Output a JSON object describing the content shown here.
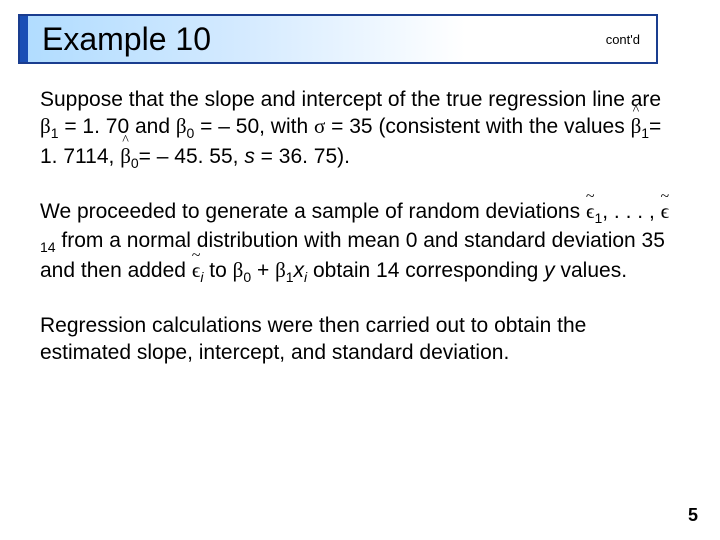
{
  "title": "Example 10",
  "contd": "cont'd",
  "para1": {
    "t1": "Suppose that the slope and intercept of the true regression line are ",
    "b1": "β",
    "s1": "1",
    "t2": " = 1. 70 and ",
    "b0": "β",
    "s0": "0",
    "t3": " = – 50, with ",
    "sigma": "σ",
    "t4": " = 35 (consistent with the values ",
    "bhat1": "β",
    "bhat1s": "1",
    "t5": "= 1. 7114, ",
    "bhat0": "β",
    "bhat0s": "0",
    "t6": "= – 45. 55, ",
    "s": "s",
    "t7": " = 36. 75)."
  },
  "para2": {
    "t1": "We proceeded to generate a sample of random deviations ",
    "e1": "ϵ",
    "e1s": "1",
    "dots": ", . . . , ",
    "e14": "ϵ",
    "e14s": "14",
    "t2": " from a normal distribution with mean 0 and standard deviation 35 and then added ",
    "ei": "ϵ",
    "eis": "i",
    "t3": " to ",
    "b0": "β",
    "s0": "0",
    "plus": " + ",
    "b1": "β",
    "s1": "1",
    "x": "x",
    "xi": "i",
    "t4": " obtain 14 corresponding ",
    "y": "y",
    "t5": " values."
  },
  "para3": "Regression calculations were then carried out to obtain the estimated slope, intercept, and standard deviation.",
  "pagenum": "5",
  "colors": {
    "border": "#1a3d8f",
    "accent": "#1a4fb5"
  }
}
